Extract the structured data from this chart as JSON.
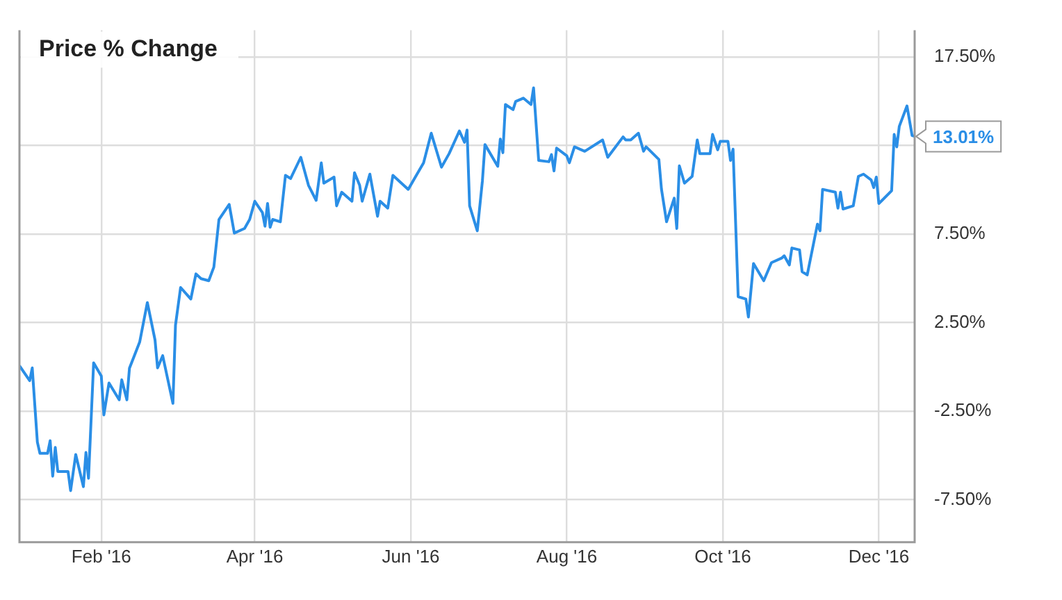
{
  "chart_data": {
    "type": "line",
    "title": "Price % Change",
    "x": [
      "2015-12-31",
      "2016-01-04",
      "2016-01-05",
      "2016-01-07",
      "2016-01-08",
      "2016-01-11",
      "2016-01-12",
      "2016-01-13",
      "2016-01-14",
      "2016-01-15",
      "2016-01-19",
      "2016-01-20",
      "2016-01-22",
      "2016-01-25",
      "2016-01-26",
      "2016-01-27",
      "2016-01-29",
      "2016-02-01",
      "2016-02-02",
      "2016-02-04",
      "2016-02-08",
      "2016-02-09",
      "2016-02-11",
      "2016-02-12",
      "2016-02-16",
      "2016-02-19",
      "2016-02-22",
      "2016-02-23",
      "2016-02-25",
      "2016-02-29",
      "2016-03-01",
      "2016-03-03",
      "2016-03-07",
      "2016-03-09",
      "2016-03-11",
      "2016-03-14",
      "2016-03-16",
      "2016-03-18",
      "2016-03-22",
      "2016-03-24",
      "2016-03-28",
      "2016-03-30",
      "2016-04-01",
      "2016-04-04",
      "2016-04-05",
      "2016-04-06",
      "2016-04-07",
      "2016-04-08",
      "2016-04-11",
      "2016-04-13",
      "2016-04-15",
      "2016-04-19",
      "2016-04-22",
      "2016-04-25",
      "2016-04-27",
      "2016-04-28",
      "2016-05-02",
      "2016-05-03",
      "2016-05-05",
      "2016-05-09",
      "2016-05-10",
      "2016-05-12",
      "2016-05-13",
      "2016-05-16",
      "2016-05-19",
      "2016-05-20",
      "2016-05-23",
      "2016-05-25",
      "2016-05-31",
      "2016-06-06",
      "2016-06-09",
      "2016-06-13",
      "2016-06-16",
      "2016-06-20",
      "2016-06-22",
      "2016-06-23",
      "2016-06-24",
      "2016-06-27",
      "2016-06-29",
      "2016-06-30",
      "2016-07-05",
      "2016-07-06",
      "2016-07-07",
      "2016-07-08",
      "2016-07-11",
      "2016-07-12",
      "2016-07-15",
      "2016-07-18",
      "2016-07-19",
      "2016-07-21",
      "2016-07-25",
      "2016-07-26",
      "2016-07-27",
      "2016-07-28",
      "2016-08-01",
      "2016-08-02",
      "2016-08-04",
      "2016-08-08",
      "2016-08-15",
      "2016-08-17",
      "2016-08-23",
      "2016-08-24",
      "2016-08-26",
      "2016-08-29",
      "2016-08-31",
      "2016-09-01",
      "2016-09-06",
      "2016-09-07",
      "2016-09-09",
      "2016-09-12",
      "2016-09-13",
      "2016-09-14",
      "2016-09-16",
      "2016-09-19",
      "2016-09-21",
      "2016-09-22",
      "2016-09-26",
      "2016-09-27",
      "2016-09-29",
      "2016-09-30",
      "2016-10-03",
      "2016-10-04",
      "2016-10-05",
      "2016-10-07",
      "2016-10-10",
      "2016-10-11",
      "2016-10-13",
      "2016-10-17",
      "2016-10-20",
      "2016-10-24",
      "2016-10-25",
      "2016-10-27",
      "2016-10-28",
      "2016-10-31",
      "2016-11-01",
      "2016-11-03",
      "2016-11-07",
      "2016-11-08",
      "2016-11-09",
      "2016-11-14",
      "2016-11-15",
      "2016-11-16",
      "2016-11-17",
      "2016-11-21",
      "2016-11-23",
      "2016-11-25",
      "2016-11-28",
      "2016-11-29",
      "2016-11-30",
      "2016-12-01",
      "2016-12-06",
      "2016-12-07",
      "2016-12-08",
      "2016-12-09",
      "2016-12-12",
      "2016-12-14",
      "2016-12-15"
    ],
    "series": [
      {
        "color": "#2a8ee6",
        "values": [
          0.06,
          -0.78,
          -0.06,
          -4.25,
          -4.88,
          -4.88,
          -4.17,
          -6.17,
          -4.55,
          -5.91,
          -5.91,
          -6.99,
          -4.95,
          -6.76,
          -4.83,
          -6.29,
          0.23,
          -0.52,
          -2.71,
          -0.91,
          -1.86,
          -0.73,
          -1.86,
          -0.08,
          1.4,
          3.63,
          1.52,
          -0.06,
          0.63,
          -2.06,
          2.35,
          4.48,
          3.83,
          5.25,
          4.98,
          4.86,
          5.63,
          8.32,
          9.17,
          7.55,
          7.81,
          8.32,
          9.35,
          8.71,
          7.94,
          9.22,
          7.88,
          8.32,
          8.19,
          10.81,
          10.63,
          11.83,
          10.25,
          9.4,
          11.52,
          10.37,
          10.71,
          9.09,
          9.86,
          9.35,
          10.96,
          10.25,
          9.35,
          10.88,
          8.5,
          9.35,
          8.96,
          10.81,
          10.02,
          11.52,
          13.19,
          11.27,
          12.04,
          13.32,
          12.68,
          13.37,
          9.09,
          7.68,
          10.5,
          12.55,
          11.32,
          12.86,
          12.09,
          14.81,
          14.52,
          14.98,
          15.17,
          14.81,
          15.75,
          11.65,
          11.58,
          11.98,
          11.06,
          12.35,
          11.91,
          11.52,
          12.42,
          12.17,
          12.81,
          11.83,
          12.98,
          12.81,
          12.81,
          13.19,
          12.17,
          12.42,
          11.71,
          10.04,
          8.19,
          9.52,
          7.81,
          11.35,
          10.37,
          10.75,
          12.81,
          12.04,
          12.04,
          13.12,
          12.25,
          12.73,
          12.73,
          11.65,
          12.29,
          3.96,
          3.83,
          2.81,
          5.83,
          4.86,
          5.88,
          6.14,
          6.27,
          5.75,
          6.71,
          6.6,
          5.37,
          5.19,
          8.06,
          7.68,
          10.02,
          9.86,
          8.96,
          9.86,
          8.91,
          9.09,
          10.75,
          10.88,
          10.55,
          10.12,
          10.71,
          9.22,
          9.94,
          13.12,
          12.42,
          13.58,
          14.73,
          13.06,
          13.01
        ]
      }
    ],
    "xlim": [
      "2015-12-31",
      "2016-12-15"
    ],
    "xticks": [
      {
        "value": "2016-02-01",
        "label": "Feb '16"
      },
      {
        "value": "2016-04-01",
        "label": "Apr '16"
      },
      {
        "value": "2016-06-01",
        "label": "Jun '16"
      },
      {
        "value": "2016-08-01",
        "label": "Aug '16"
      },
      {
        "value": "2016-10-01",
        "label": "Oct '16"
      },
      {
        "value": "2016-12-01",
        "label": "Dec '16"
      }
    ],
    "ylim": [
      -9.9,
      19
    ],
    "yticks": [
      {
        "value": -7.5,
        "label": "-7.50%"
      },
      {
        "value": -2.5,
        "label": "-2.50%"
      },
      {
        "value": 2.5,
        "label": "2.50%"
      },
      {
        "value": 7.5,
        "label": "7.50%"
      },
      {
        "value": 12.5,
        "label": null
      },
      {
        "value": 17.5,
        "label": "17.50%"
      }
    ],
    "annotations": [
      {
        "text": "13.01%",
        "x": "2016-12-15",
        "y": 13.01
      }
    ],
    "grid": true,
    "marker": "none",
    "line_style": "solid"
  }
}
